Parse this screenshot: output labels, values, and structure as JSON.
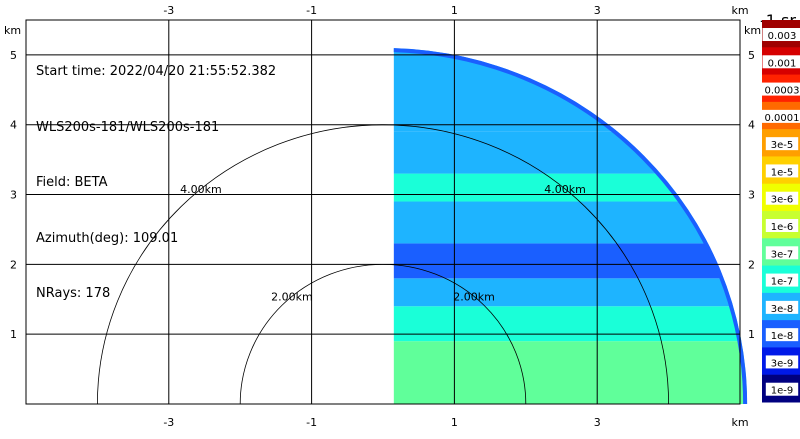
{
  "info": {
    "start_time": "Start time: 2022/04/20 21:55:52.382",
    "instrument": "WLS200s-181/WLS200s-181",
    "field": "Field: BETA",
    "azimuth": "Azimuth(deg): 109.01",
    "nrays": "NRays: 178"
  },
  "chart_data": {
    "type": "heatmap",
    "title": "",
    "x_unit": "km",
    "y_unit": "km",
    "xlim": [
      -5,
      5
    ],
    "ylim": [
      0,
      5.5
    ],
    "x_ticks": [
      -3,
      -1,
      1,
      3
    ],
    "y_ticks": [
      1,
      2,
      3,
      4,
      5
    ],
    "range_rings": [
      {
        "radius_km": 2,
        "label": "2.00km"
      },
      {
        "radius_km": 4,
        "label": "4.00km"
      }
    ],
    "sector": {
      "radius_km": 5.1,
      "x_min_km": 0.15
    },
    "layers": [
      {
        "y_from": 0.0,
        "y_to": 0.9,
        "value": "3e-7"
      },
      {
        "y_from": 0.9,
        "y_to": 1.4,
        "value": "1e-7"
      },
      {
        "y_from": 1.4,
        "y_to": 1.8,
        "value": "3e-8"
      },
      {
        "y_from": 1.8,
        "y_to": 2.3,
        "value": "1e-8"
      },
      {
        "y_from": 2.3,
        "y_to": 2.9,
        "value": "3e-8"
      },
      {
        "y_from": 2.9,
        "y_to": 3.3,
        "value": "1e-7"
      },
      {
        "y_from": 3.3,
        "y_to": 3.9,
        "value": "3e-8"
      },
      {
        "y_from": 3.9,
        "y_to": 5.1,
        "value": "3e-8"
      }
    ],
    "colorbar": {
      "unit": "-1 sr",
      "levels": [
        "0.003",
        "0.001",
        "0.0003",
        "0.0001",
        "3e-5",
        "1e-5",
        "3e-6",
        "1e-6",
        "3e-7",
        "1e-7",
        "3e-8",
        "1e-8",
        "3e-9",
        "1e-9"
      ],
      "colors": [
        "#a00000",
        "#d60000",
        "#ff2200",
        "#ff6a00",
        "#ff9f00",
        "#ffd000",
        "#f0ff00",
        "#c8ff30",
        "#60ff9a",
        "#1affd8",
        "#1eb4ff",
        "#1a5fff",
        "#0019e8",
        "#000080"
      ]
    }
  }
}
